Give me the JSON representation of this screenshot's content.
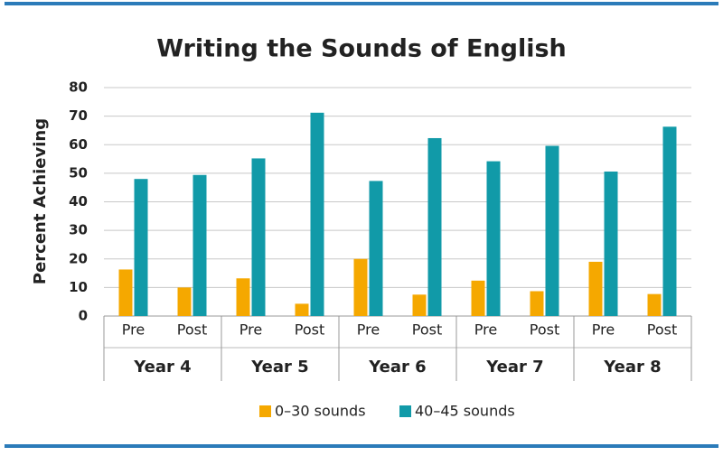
{
  "chart_data": {
    "type": "bar",
    "title": "Writing the Sounds of English",
    "y_label": "Percent Achieving",
    "categories": [
      "Pre",
      "Post",
      "Pre",
      "Post",
      "Pre",
      "Post",
      "Pre",
      "Post",
      "Pre",
      "Post"
    ],
    "groups": [
      "Year 4",
      "Year 5",
      "Year 6",
      "Year 7",
      "Year 8"
    ],
    "series": [
      {
        "name": "0–30 sounds",
        "color": "#f5a800",
        "values": [
          16.3,
          10,
          13.2,
          4.3,
          20,
          7.5,
          12.4,
          8.7,
          19,
          7.7
        ]
      },
      {
        "name": "40–45 sounds",
        "color": "#119aa8",
        "values": [
          48,
          49.4,
          55.2,
          71.2,
          47.3,
          62.3,
          54.2,
          59.6,
          50.6,
          66.3
        ]
      }
    ],
    "ylim": [
      0,
      80
    ],
    "yticks": [
      0,
      10,
      20,
      30,
      40,
      50,
      60,
      70,
      80
    ],
    "grid": true
  }
}
